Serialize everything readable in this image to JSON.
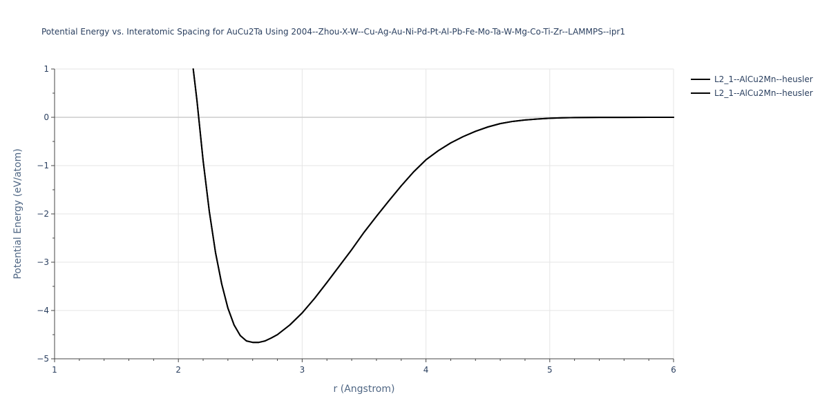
{
  "chart_data": {
    "type": "line",
    "title": "Potential Energy vs. Interatomic Spacing for AuCu2Ta Using 2004--Zhou-X-W--Cu-Ag-Au-Ni-Pd-Pt-Al-Pb-Fe-Mo-Ta-W-Mg-Co-Ti-Zr--LAMMPS--ipr1",
    "xlabel": "r (Angstrom)",
    "ylabel": "Potential Energy (eV/atom)",
    "xlim": [
      1,
      6
    ],
    "ylim": [
      -5,
      1
    ],
    "xticks": [
      "1",
      "2",
      "3",
      "4",
      "5",
      "6"
    ],
    "yticks": [
      "1",
      "0",
      "−1",
      "−2",
      "−3",
      "−4",
      "−5"
    ],
    "grid": true,
    "legend_position": "top-right",
    "series": [
      {
        "name": "L2_1--AlCu2Mn--heusler",
        "color": "#000000",
        "x": [
          2.12,
          2.15,
          2.2,
          2.25,
          2.3,
          2.35,
          2.4,
          2.45,
          2.5,
          2.55,
          2.6,
          2.65,
          2.7,
          2.75,
          2.8,
          2.9,
          3.0,
          3.1,
          3.2,
          3.3,
          3.4,
          3.5,
          3.6,
          3.7,
          3.8,
          3.9,
          4.0,
          4.1,
          4.2,
          4.3,
          4.4,
          4.5,
          4.6,
          4.7,
          4.8,
          4.9,
          5.0,
          5.1,
          5.2,
          5.4,
          5.6,
          5.8,
          6.0
        ],
        "y": [
          1.0,
          0.35,
          -0.9,
          -1.95,
          -2.8,
          -3.45,
          -3.95,
          -4.3,
          -4.52,
          -4.63,
          -4.66,
          -4.66,
          -4.63,
          -4.57,
          -4.5,
          -4.3,
          -4.05,
          -3.75,
          -3.42,
          -3.08,
          -2.74,
          -2.38,
          -2.05,
          -1.73,
          -1.42,
          -1.13,
          -0.88,
          -0.69,
          -0.53,
          -0.4,
          -0.29,
          -0.2,
          -0.13,
          -0.085,
          -0.055,
          -0.035,
          -0.02,
          -0.01,
          -0.005,
          -0.002,
          -0.001,
          0.0,
          0.0
        ]
      },
      {
        "name": "L2_1--AlCu2Mn--heusler",
        "color": "#000000",
        "x": [
          2.12,
          2.15,
          2.2,
          2.25,
          2.3,
          2.35,
          2.4,
          2.45,
          2.5,
          2.55,
          2.6,
          2.65,
          2.7,
          2.75,
          2.8,
          2.9,
          3.0,
          3.1,
          3.2,
          3.3,
          3.4,
          3.5,
          3.6,
          3.7,
          3.8,
          3.9,
          4.0,
          4.1,
          4.2,
          4.3,
          4.4,
          4.5,
          4.6,
          4.7,
          4.8,
          4.9,
          5.0,
          5.1,
          5.2,
          5.4,
          5.6,
          5.8,
          6.0
        ],
        "y": [
          1.0,
          0.35,
          -0.9,
          -1.95,
          -2.8,
          -3.45,
          -3.95,
          -4.3,
          -4.52,
          -4.63,
          -4.66,
          -4.66,
          -4.63,
          -4.57,
          -4.5,
          -4.3,
          -4.05,
          -3.75,
          -3.42,
          -3.08,
          -2.74,
          -2.38,
          -2.05,
          -1.73,
          -1.42,
          -1.13,
          -0.88,
          -0.69,
          -0.53,
          -0.4,
          -0.29,
          -0.2,
          -0.13,
          -0.085,
          -0.055,
          -0.035,
          -0.02,
          -0.01,
          -0.005,
          -0.002,
          -0.001,
          0.0,
          0.0
        ]
      }
    ]
  }
}
